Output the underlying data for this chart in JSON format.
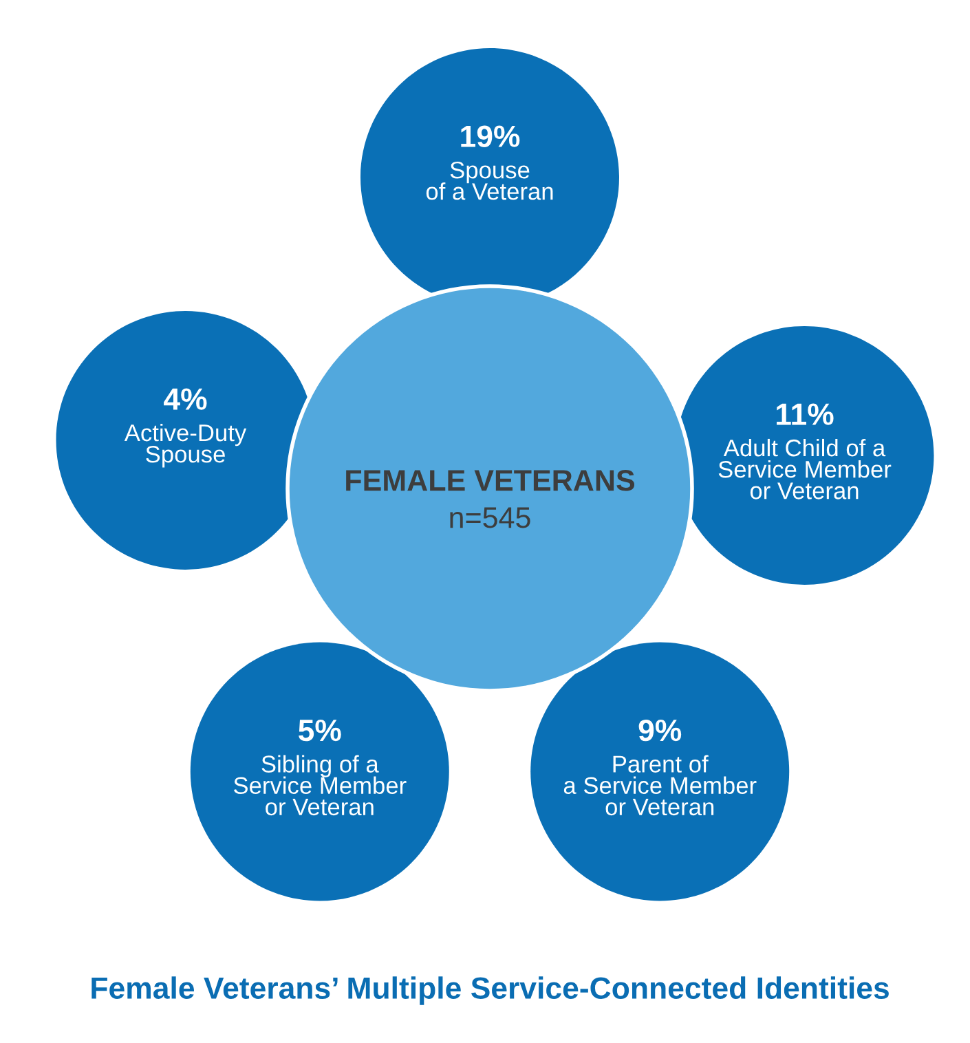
{
  "chart_data": {
    "type": "other",
    "title": "Female Veterans’ Multiple Service-Connected Identities",
    "categories": [
      "Spouse\nof a Veteran",
      "Adult Child of a\nService Member\nor Veteran",
      "Parent of\na Service Member\nor Veteran",
      "Sibling of a\nService Member\nor Veteran",
      "Active-Duty\nSpouse"
    ],
    "values": [
      19,
      11,
      9,
      5,
      4
    ],
    "value_labels": [
      "19%",
      "11%",
      "9%",
      "5%",
      "4%"
    ],
    "colors": [
      "#0a70b6",
      "#0a70b6",
      "#0a70b6",
      "#0a70b6",
      "#0a70b6"
    ],
    "annotations": [
      "FEMALE VETERANS",
      "n=545"
    ]
  }
}
